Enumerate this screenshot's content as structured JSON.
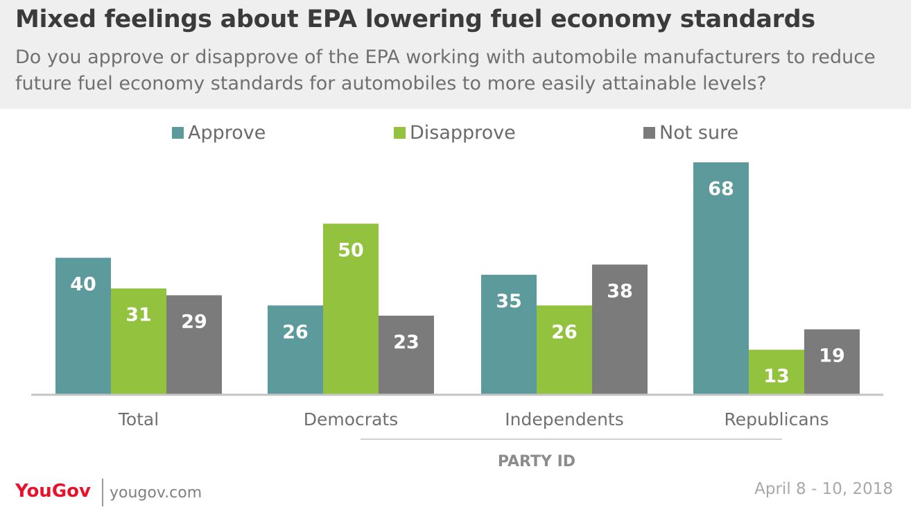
{
  "header": {
    "title": "Mixed feelings about EPA lowering fuel economy standards",
    "subtitle": "Do you approve or disapprove of the EPA working with automobile manufacturers to reduce future fuel economy standards for automobiles to more easily attainable levels?"
  },
  "chart_data": {
    "type": "bar",
    "title": "Mixed feelings about EPA lowering fuel economy standards",
    "categories": [
      "Total",
      "Democrats",
      "Independents",
      "Republicans"
    ],
    "series": [
      {
        "name": "Approve",
        "color": "#5c9a9c",
        "values": [
          40,
          26,
          35,
          68
        ]
      },
      {
        "name": "Disapprove",
        "color": "#93c23e",
        "values": [
          31,
          50,
          26,
          13
        ]
      },
      {
        "name": "Not sure",
        "color": "#7b7b7b",
        "values": [
          29,
          23,
          38,
          19
        ]
      }
    ],
    "group_label": "PARTY ID",
    "xlabel": "",
    "ylabel": "",
    "ylim": [
      0,
      68
    ],
    "legend": "top",
    "grid": false
  },
  "footer": {
    "brand": "YouGov",
    "site": "yougov.com",
    "date": "April 8 - 10, 2018"
  }
}
